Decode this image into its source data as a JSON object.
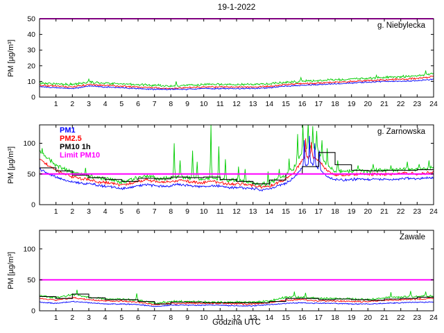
{
  "title": "19-1-2022",
  "xlabel": "Godzina UTC",
  "ylabel": "PM [µg/m³]",
  "legend": {
    "entries": [
      {
        "label": "PM1",
        "color": "#0000ff"
      },
      {
        "label": "PM2.5",
        "color": "#ff0000"
      },
      {
        "label": "PM10 1h",
        "color": "#000000"
      },
      {
        "label": "Limit PM10",
        "color": "#ff00ff"
      }
    ]
  },
  "chart_data": {
    "type": "line",
    "x_range": [
      0,
      24
    ],
    "xticks": [
      1,
      2,
      3,
      4,
      5,
      6,
      7,
      8,
      9,
      10,
      11,
      12,
      13,
      14,
      15,
      16,
      17,
      18,
      19,
      20,
      21,
      22,
      23,
      24
    ],
    "limit_pm10": 50,
    "colors": {
      "pm1": "#0000ff",
      "pm25": "#ff0000",
      "pm10": "#00cc00",
      "pm10_1h": "#000000",
      "limit": "#ff00ff"
    },
    "panels": [
      {
        "station": "g. Niebylecka",
        "ylim": [
          0,
          50
        ],
        "yticks": [
          0,
          10,
          20,
          30,
          40,
          50
        ],
        "sample_step_hours": 1,
        "series": {
          "pm10": {
            "values": [
              9,
              8.5,
              8,
              9.5,
              9,
              8.5,
              8,
              7.5,
              7,
              7.5,
              8,
              8,
              8,
              8,
              8.5,
              9.5,
              10,
              10.5,
              11,
              11.5,
              12,
              12.5,
              13,
              13.5,
              15
            ],
            "noise": 0.9
          },
          "pm25": {
            "values": [
              7.5,
              7,
              6.5,
              8,
              7.5,
              7,
              6.5,
              6,
              5.5,
              6,
              6.5,
              6.5,
              6.5,
              6.5,
              7,
              8,
              8.5,
              9,
              9.5,
              10,
              10.5,
              11,
              11.5,
              12,
              13
            ],
            "noise": 0.7
          },
          "pm1": {
            "values": [
              6.5,
              6,
              5.5,
              7,
              6.5,
              6,
              5.5,
              5,
              5,
              5,
              5.5,
              5.5,
              5.5,
              5.5,
              6,
              7,
              7.5,
              8,
              8.5,
              9,
              9.5,
              10,
              10,
              10.5,
              11.5
            ],
            "noise": 0.5
          }
        },
        "spikes": {
          "pm10": [
            [
              3.0,
              11.5
            ],
            [
              8.3,
              10
            ],
            [
              15.9,
              12.5
            ],
            [
              20.5,
              14
            ],
            [
              23.5,
              17
            ]
          ]
        },
        "pm10_1h": null
      },
      {
        "station": "g. Zarnowska",
        "ylim": [
          0,
          130
        ],
        "yticks": [
          0,
          50,
          100
        ],
        "sample_step_hours": 0.5,
        "series": {
          "pm10": {
            "values": [
              88,
              75,
              65,
              58,
              52,
              50,
              47,
              44,
              42,
              40,
              37,
              40,
              44,
              46,
              44,
              42,
              44,
              46,
              44,
              42,
              42,
              44,
              42,
              40,
              40,
              38,
              36,
              33,
              35,
              42,
              48,
              60,
              85,
              95,
              85,
              65,
              55,
              54,
              55,
              56,
              55,
              56,
              55,
              56,
              57,
              58,
              57,
              58,
              60
            ],
            "noise": 4
          },
          "pm25": {
            "values": [
              75,
              64,
              56,
              50,
              45,
              43,
              41,
              38,
              36,
              34,
              32,
              34,
              38,
              40,
              38,
              36,
              38,
              40,
              38,
              36,
              36,
              38,
              36,
              34,
              34,
              33,
              31,
              29,
              30,
              36,
              42,
              52,
              72,
              80,
              72,
              56,
              49,
              48,
              49,
              50,
              49,
              50,
              49,
              50,
              51,
              51,
              50,
              51,
              53
            ],
            "noise": 3
          },
          "pm1": {
            "values": [
              58,
              51,
              45,
              41,
              37,
              35,
              34,
              32,
              30,
              28,
              26,
              28,
              31,
              33,
              31,
              30,
              31,
              33,
              31,
              30,
              30,
              31,
              30,
              28,
              28,
              27,
              26,
              24,
              25,
              30,
              35,
              44,
              60,
              68,
              60,
              46,
              41,
              40,
              41,
              42,
              41,
              42,
              41,
              42,
              42,
              43,
              42,
              43,
              44
            ],
            "noise": 2.5
          }
        },
        "spikes": {
          "pm10": [
            [
              0.15,
              92
            ],
            [
              2.8,
              60
            ],
            [
              8.2,
              100
            ],
            [
              8.55,
              72
            ],
            [
              9.3,
              88
            ],
            [
              9.6,
              70
            ],
            [
              10.45,
              130
            ],
            [
              10.9,
              95
            ],
            [
              11.3,
              74
            ],
            [
              12.1,
              62
            ],
            [
              12.5,
              58
            ],
            [
              13.9,
              54
            ],
            [
              14.6,
              58
            ],
            [
              15.2,
              75
            ],
            [
              15.7,
              115
            ],
            [
              16.05,
              130
            ],
            [
              16.35,
              134
            ],
            [
              16.65,
              128
            ],
            [
              16.9,
              120
            ],
            [
              17.2,
              105
            ],
            [
              17.5,
              92
            ],
            [
              18.15,
              72
            ],
            [
              19.4,
              64
            ],
            [
              20.3,
              66
            ],
            [
              21.4,
              64
            ],
            [
              22.4,
              70
            ],
            [
              23.1,
              66
            ],
            [
              23.7,
              72
            ]
          ],
          "pm25": [
            [
              16.2,
              108
            ],
            [
              16.55,
              102
            ]
          ],
          "pm1": [
            [
              16.1,
              105
            ],
            [
              16.45,
              112
            ],
            [
              16.75,
              100
            ],
            [
              17.05,
              88
            ]
          ]
        },
        "pm10_1h": [
          60,
          55,
          48,
          44,
          41,
          38,
          43,
          42,
          45,
          44,
          45,
          41,
          38,
          34,
          40,
          50,
          62,
          85,
          65,
          56,
          55,
          56,
          56,
          57
        ]
      },
      {
        "station": "Zawale",
        "ylim": [
          0,
          130
        ],
        "yticks": [
          0,
          50,
          100
        ],
        "sample_step_hours": 1,
        "series": {
          "pm10": {
            "values": [
              25,
              21,
              26,
              22,
              19,
              19,
              17,
              12,
              15,
              15,
              14,
              14,
              14,
              14,
              16,
              22,
              22,
              20,
              20,
              19,
              18,
              21,
              22,
              23,
              24
            ],
            "noise": 2
          },
          "pm25": {
            "values": [
              20,
              17,
              21,
              18,
              16,
              16,
              14,
              10,
              12,
              12,
              12,
              12,
              11,
              11,
              13,
              17,
              18,
              16,
              16,
              15,
              15,
              17,
              18,
              19,
              20
            ],
            "noise": 1.5
          },
          "pm1": {
            "values": [
              14,
              12,
              15,
              13,
              11,
              11,
              10,
              7,
              9,
              9,
              9,
              9,
              8,
              8,
              10,
              12,
              13,
              12,
              12,
              11,
              11,
              12,
              13,
              14,
              14
            ],
            "noise": 1
          }
        },
        "spikes": {
          "pm10": [
            [
              2.3,
              34
            ],
            [
              5.9,
              28
            ],
            [
              15.5,
              31
            ],
            [
              16.2,
              29
            ],
            [
              21.4,
              30
            ],
            [
              22.6,
              32
            ],
            [
              23.5,
              31
            ]
          ]
        },
        "pm10_1h": [
          23,
          20,
          27,
          21,
          18,
          18,
          15,
          11,
          14,
          14,
          13,
          13,
          13,
          13,
          15,
          20,
          20,
          18,
          19,
          18,
          17,
          19,
          20,
          22
        ]
      }
    ]
  }
}
